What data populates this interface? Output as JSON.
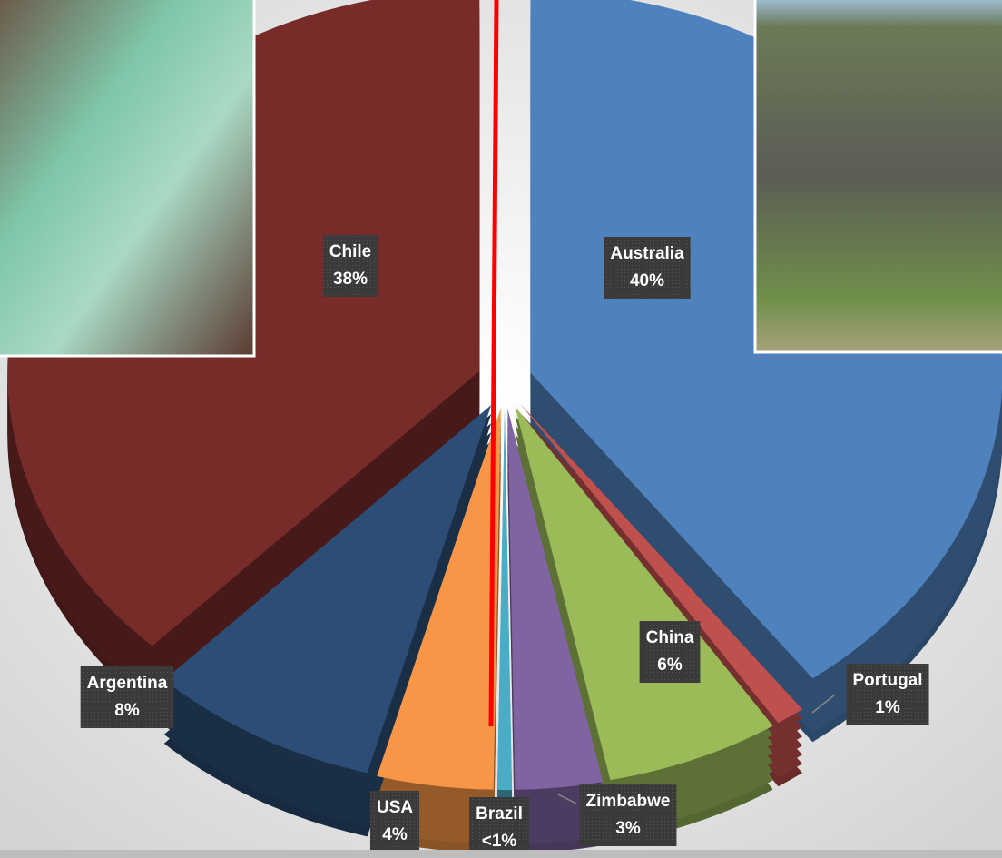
{
  "chart_data": {
    "type": "pie",
    "categories": [
      "Australia",
      "Portugal",
      "China",
      "Zimbabwe",
      "Brazil",
      "USA",
      "Argentina",
      "Chile"
    ],
    "values": [
      40,
      1,
      6,
      3,
      0.5,
      4,
      8,
      38
    ],
    "value_labels": [
      "40%",
      "1%",
      "6%",
      "3%",
      "<1%",
      "4%",
      "8%",
      "38%"
    ],
    "colors": [
      "#4f81bd",
      "#c0504d",
      "#9bbb59",
      "#8064a2",
      "#4bacc6",
      "#f79646",
      "#2c4d75",
      "#772c2a"
    ]
  }
}
